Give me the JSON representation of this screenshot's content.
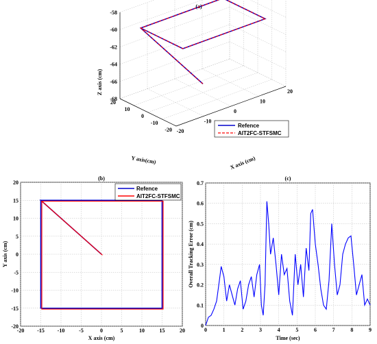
{
  "chart_data": [
    {
      "panel": "a",
      "type": "line",
      "title": "(a)",
      "xlabel": "X axis (cm)",
      "ylabel": "Y axis(cm)",
      "zlabel": "Z axis (cm)",
      "xlim": [
        -20,
        20
      ],
      "ylim": [
        -20,
        20
      ],
      "zlim": [
        -68,
        -58
      ],
      "xticks": [
        "-20",
        "-10",
        "0",
        "10",
        "20"
      ],
      "yticks": [
        "-20",
        "-10",
        "0",
        "10",
        "20"
      ],
      "zticks": [
        "-58",
        "-60",
        "-62",
        "-64",
        "-66",
        "-68"
      ],
      "grid": true,
      "legend_position": "bottom-right",
      "series": [
        {
          "name": "Refence",
          "color": "#0000cc",
          "style": "solid",
          "points": [
            [
              0,
              0,
              -67
            ],
            [
              -15,
              15,
              -60
            ],
            [
              15,
              15,
              -60
            ],
            [
              15,
              -15,
              -60
            ],
            [
              -15,
              -15,
              -60
            ],
            [
              -15,
              15,
              -60
            ]
          ]
        },
        {
          "name": "AIT2FC-STFSMC",
          "color": "#ff0000",
          "style": "dashed",
          "points": [
            [
              0,
              0,
              -67
            ],
            [
              -15,
              15,
              -60
            ],
            [
              15,
              15,
              -60
            ],
            [
              15,
              -15,
              -60
            ],
            [
              -15,
              -15,
              -60
            ],
            [
              -15,
              15,
              -60
            ]
          ]
        }
      ]
    },
    {
      "panel": "b",
      "type": "line",
      "title": "(b)",
      "xlabel": "X axis (cm)",
      "ylabel": "Y axis (cm)",
      "xlim": [
        -20,
        20
      ],
      "ylim": [
        -20,
        20
      ],
      "xticks": [
        "-20",
        "-15",
        "-10",
        "-5",
        "0",
        "5",
        "10",
        "15",
        "20"
      ],
      "yticks": [
        "20",
        "15",
        "10",
        "5",
        "0",
        "-5",
        "-10",
        "-15",
        "-20"
      ],
      "grid": true,
      "legend_position": "top-right",
      "series": [
        {
          "name": "Refence",
          "color": "#0000cc",
          "points": [
            [
              0,
              0
            ],
            [
              -15,
              15
            ],
            [
              15,
              15
            ],
            [
              15,
              -15
            ],
            [
              -15,
              -15
            ],
            [
              -15,
              15
            ]
          ]
        },
        {
          "name": "AIT2FC-STFSMC",
          "color": "#ff0000",
          "points": [
            [
              0,
              0
            ],
            [
              -15,
              15
            ],
            [
              15,
              15
            ],
            [
              15,
              -15
            ],
            [
              -15,
              -15
            ],
            [
              -15,
              15
            ]
          ]
        }
      ]
    },
    {
      "panel": "c",
      "type": "line",
      "title": "(c)",
      "xlabel": "Time (sec)",
      "ylabel": "Overall Tracking Error (cm)",
      "xlim": [
        0,
        9
      ],
      "ylim": [
        0,
        0.7
      ],
      "xticks": [
        "0",
        "1",
        "2",
        "3",
        "4",
        "5",
        "6",
        "7",
        "8",
        "9"
      ],
      "yticks": [
        "0.7",
        "0.6",
        "0.5",
        "0.4",
        "0.3",
        "0.2",
        "0.1",
        "0"
      ],
      "grid": true,
      "series": [
        {
          "name": "",
          "color": "#0000ff",
          "x": [
            0,
            0.15,
            0.3,
            0.45,
            0.6,
            0.75,
            0.85,
            1.0,
            1.15,
            1.3,
            1.45,
            1.6,
            1.75,
            1.9,
            2.05,
            2.2,
            2.35,
            2.5,
            2.65,
            2.8,
            2.95,
            3.05,
            3.15,
            3.25,
            3.35,
            3.45,
            3.55,
            3.7,
            3.85,
            4.0,
            4.15,
            4.3,
            4.45,
            4.6,
            4.75,
            4.9,
            5.05,
            5.2,
            5.35,
            5.5,
            5.65,
            5.75,
            5.85,
            6.0,
            6.15,
            6.3,
            6.45,
            6.6,
            6.75,
            6.9,
            7.05,
            7.2,
            7.35,
            7.5,
            7.65,
            7.8,
            7.95,
            8.1,
            8.25,
            8.4,
            8.55,
            8.7,
            8.85,
            9.0
          ],
          "y": [
            0.0,
            0.04,
            0.05,
            0.08,
            0.12,
            0.22,
            0.29,
            0.24,
            0.12,
            0.2,
            0.15,
            0.1,
            0.18,
            0.22,
            0.08,
            0.12,
            0.2,
            0.24,
            0.14,
            0.25,
            0.3,
            0.1,
            0.05,
            0.2,
            0.61,
            0.5,
            0.35,
            0.43,
            0.3,
            0.15,
            0.35,
            0.25,
            0.28,
            0.12,
            0.05,
            0.35,
            0.2,
            0.3,
            0.14,
            0.38,
            0.27,
            0.55,
            0.57,
            0.4,
            0.3,
            0.18,
            0.1,
            0.08,
            0.22,
            0.5,
            0.3,
            0.15,
            0.2,
            0.35,
            0.4,
            0.43,
            0.44,
            0.3,
            0.15,
            0.2,
            0.25,
            0.1,
            0.13,
            0.1
          ]
        }
      ]
    }
  ],
  "legend": {
    "ref_label": "Refence",
    "ctrl_label": "AIT2FC-STFSMC"
  }
}
